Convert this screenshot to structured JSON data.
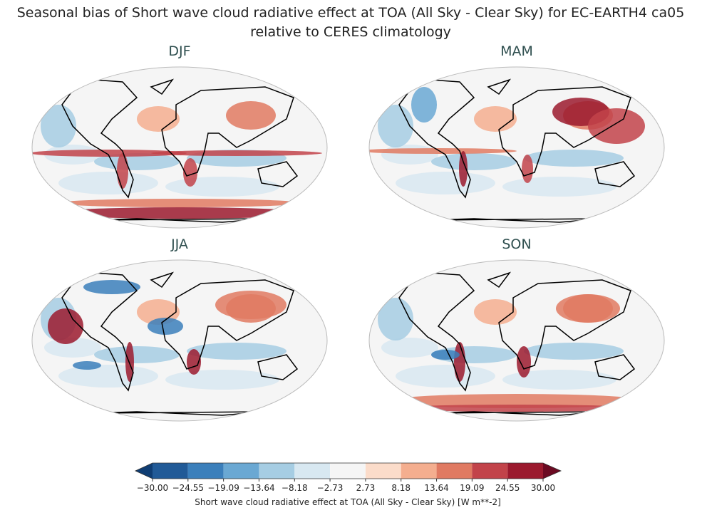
{
  "title": "Seasonal bias of Short wave cloud radiative effect at TOA (All Sky - Clear Sky) for EC-EARTH4 ca05",
  "subtitle": "relative to CERES climatology",
  "panels": [
    "DJF",
    "MAM",
    "JJA",
    "SON"
  ],
  "colorbar": {
    "label": "Short wave cloud radiative effect at TOA (All Sky - Clear Sky) [W m**-2]",
    "ticks": [
      {
        "value": -30,
        "label": "−30.00"
      },
      {
        "value": -24.55,
        "label": "−24.55"
      },
      {
        "value": -19.09,
        "label": "−19.09"
      },
      {
        "value": -13.64,
        "label": "−13.64"
      },
      {
        "value": -8.18,
        "label": "−8.18"
      },
      {
        "value": -2.73,
        "label": "−2.73"
      },
      {
        "value": 2.73,
        "label": "2.73"
      },
      {
        "value": 8.18,
        "label": "8.18"
      },
      {
        "value": 13.64,
        "label": "13.64"
      },
      {
        "value": 19.09,
        "label": "19.09"
      },
      {
        "value": 24.55,
        "label": "24.55"
      },
      {
        "value": 30,
        "label": "30.00"
      }
    ],
    "colors": [
      "#215a97",
      "#3b7fbb",
      "#6aa8d3",
      "#a6cde3",
      "#d8e8f1",
      "#f5f5f5",
      "#fbdcca",
      "#f4ae8f",
      "#e07a62",
      "#c2434a",
      "#9b1a2e"
    ],
    "under_color": "#0f3d73",
    "over_color": "#6b0a22"
  }
}
